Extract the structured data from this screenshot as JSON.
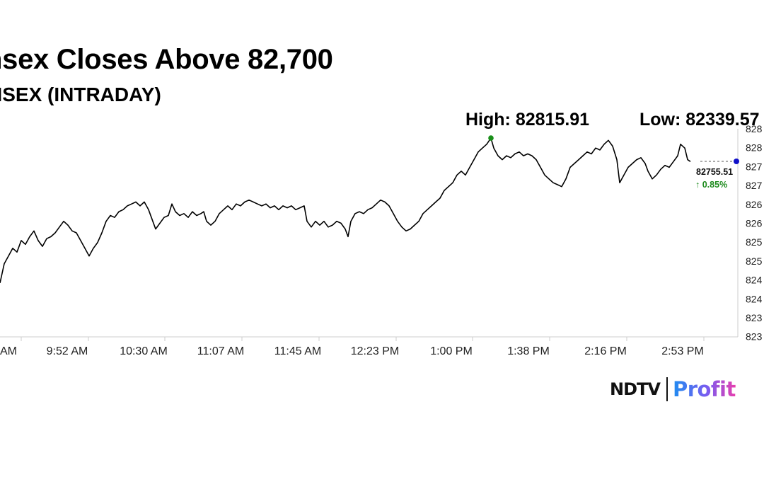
{
  "title": "nsex Closes Above 82,700",
  "subtitle": "NSEX (INTRADAY)",
  "high_label": "High: 82815.91",
  "low_label": "Low: 82339.57",
  "last_price": "82755.51",
  "change_pct": "0.85%",
  "change_icon": "arrow-up-icon",
  "logo": {
    "brand": "NDTV",
    "product": "Profit"
  },
  "colors": {
    "line": "#000000",
    "high_marker": "#1a8f1a",
    "last_marker": "#1010c8",
    "positive": "#1e8b1e",
    "axis": "#cccccc"
  },
  "chart_data": {
    "type": "line",
    "title": "nsex Closes Above 82,700",
    "subtitle": "NSEX (INTRADAY)",
    "xlabel": "",
    "ylabel": "",
    "x_ticks": [
      "AM",
      "9:52 AM",
      "10:30 AM",
      "11:07 AM",
      "11:45 AM",
      "12:23 PM",
      "1:00 PM",
      "1:38 PM",
      "2:16 PM",
      "2:53 PM"
    ],
    "y_ticks": [
      "823",
      "823",
      "824",
      "824",
      "825",
      "825",
      "826",
      "826",
      "827",
      "827",
      "828",
      "828"
    ],
    "ylim": [
      82300,
      82840
    ],
    "high": 82815.91,
    "low": 82339.57,
    "last": 82755.51,
    "change_pct": 0.85,
    "grid": false,
    "series": [
      {
        "values": [
          [
            0,
            82440
          ],
          [
            6,
            82490
          ],
          [
            12,
            82510
          ],
          [
            18,
            82530
          ],
          [
            24,
            82520
          ],
          [
            30,
            82550
          ],
          [
            36,
            82540
          ],
          [
            42,
            82560
          ],
          [
            48,
            82575
          ],
          [
            54,
            82550
          ],
          [
            60,
            82535
          ],
          [
            66,
            82555
          ],
          [
            72,
            82560
          ],
          [
            78,
            82570
          ],
          [
            84,
            82585
          ],
          [
            90,
            82600
          ],
          [
            96,
            82590
          ],
          [
            102,
            82575
          ],
          [
            108,
            82570
          ],
          [
            114,
            82550
          ],
          [
            120,
            82530
          ],
          [
            126,
            82510
          ],
          [
            132,
            82530
          ],
          [
            138,
            82545
          ],
          [
            144,
            82570
          ],
          [
            150,
            82600
          ],
          [
            156,
            82615
          ],
          [
            162,
            82610
          ],
          [
            168,
            82625
          ],
          [
            174,
            82630
          ],
          [
            180,
            82640
          ],
          [
            186,
            82645
          ],
          [
            192,
            82650
          ],
          [
            198,
            82640
          ],
          [
            204,
            82650
          ],
          [
            210,
            82630
          ],
          [
            216,
            82600
          ],
          [
            220,
            82580
          ],
          [
            226,
            82595
          ],
          [
            232,
            82610
          ],
          [
            238,
            82615
          ],
          [
            243,
            82645
          ],
          [
            248,
            82625
          ],
          [
            254,
            82615
          ],
          [
            260,
            82620
          ],
          [
            266,
            82610
          ],
          [
            272,
            82625
          ],
          [
            278,
            82615
          ],
          [
            284,
            82620
          ],
          [
            288,
            82625
          ],
          [
            292,
            82600
          ],
          [
            298,
            82590
          ],
          [
            304,
            82600
          ],
          [
            310,
            82620
          ],
          [
            316,
            82630
          ],
          [
            322,
            82640
          ],
          [
            328,
            82630
          ],
          [
            334,
            82645
          ],
          [
            340,
            82640
          ],
          [
            346,
            82650
          ],
          [
            352,
            82655
          ],
          [
            358,
            82650
          ],
          [
            364,
            82645
          ],
          [
            370,
            82640
          ],
          [
            376,
            82645
          ],
          [
            382,
            82635
          ],
          [
            388,
            82640
          ],
          [
            394,
            82630
          ],
          [
            400,
            82640
          ],
          [
            406,
            82635
          ],
          [
            412,
            82640
          ],
          [
            418,
            82630
          ],
          [
            424,
            82635
          ],
          [
            430,
            82640
          ],
          [
            434,
            82600
          ],
          [
            440,
            82585
          ],
          [
            446,
            82600
          ],
          [
            452,
            82590
          ],
          [
            458,
            82600
          ],
          [
            464,
            82585
          ],
          [
            470,
            82590
          ],
          [
            476,
            82600
          ],
          [
            482,
            82595
          ],
          [
            488,
            82580
          ],
          [
            492,
            82560
          ],
          [
            496,
            82600
          ],
          [
            502,
            82620
          ],
          [
            508,
            82625
          ],
          [
            514,
            82620
          ],
          [
            520,
            82630
          ],
          [
            526,
            82635
          ],
          [
            532,
            82645
          ],
          [
            538,
            82655
          ],
          [
            544,
            82650
          ],
          [
            550,
            82640
          ],
          [
            556,
            82620
          ],
          [
            562,
            82600
          ],
          [
            568,
            82585
          ],
          [
            574,
            82575
          ],
          [
            580,
            82580
          ],
          [
            586,
            82590
          ],
          [
            592,
            82600
          ],
          [
            598,
            82620
          ],
          [
            604,
            82630
          ],
          [
            610,
            82640
          ],
          [
            616,
            82650
          ],
          [
            622,
            82660
          ],
          [
            628,
            82680
          ],
          [
            634,
            82690
          ],
          [
            640,
            82700
          ],
          [
            646,
            82720
          ],
          [
            652,
            82730
          ],
          [
            658,
            82720
          ],
          [
            664,
            82740
          ],
          [
            670,
            82760
          ],
          [
            676,
            82780
          ],
          [
            682,
            82790
          ],
          [
            688,
            82800
          ],
          [
            694,
            82816
          ],
          [
            698,
            82790
          ],
          [
            704,
            82770
          ],
          [
            710,
            82760
          ],
          [
            716,
            82770
          ],
          [
            722,
            82765
          ],
          [
            728,
            82775
          ],
          [
            734,
            82780
          ],
          [
            740,
            82770
          ],
          [
            746,
            82775
          ],
          [
            752,
            82770
          ],
          [
            758,
            82760
          ],
          [
            764,
            82740
          ],
          [
            770,
            82720
          ],
          [
            776,
            82710
          ],
          [
            782,
            82700
          ],
          [
            788,
            82695
          ],
          [
            794,
            82690
          ],
          [
            800,
            82710
          ],
          [
            806,
            82740
          ],
          [
            812,
            82750
          ],
          [
            818,
            82760
          ],
          [
            824,
            82770
          ],
          [
            830,
            82780
          ],
          [
            836,
            82775
          ],
          [
            842,
            82790
          ],
          [
            848,
            82785
          ],
          [
            854,
            82800
          ],
          [
            860,
            82810
          ],
          [
            866,
            82795
          ],
          [
            872,
            82760
          ],
          [
            876,
            82700
          ],
          [
            882,
            82720
          ],
          [
            888,
            82740
          ],
          [
            894,
            82750
          ],
          [
            900,
            82760
          ],
          [
            906,
            82765
          ],
          [
            912,
            82750
          ],
          [
            916,
            82730
          ],
          [
            922,
            82710
          ],
          [
            928,
            82720
          ],
          [
            934,
            82735
          ],
          [
            940,
            82745
          ],
          [
            946,
            82740
          ],
          [
            952,
            82755
          ],
          [
            958,
            82770
          ],
          [
            962,
            82800
          ],
          [
            968,
            82790
          ],
          [
            972,
            82760
          ],
          [
            976,
            82755
          ]
        ]
      }
    ]
  }
}
